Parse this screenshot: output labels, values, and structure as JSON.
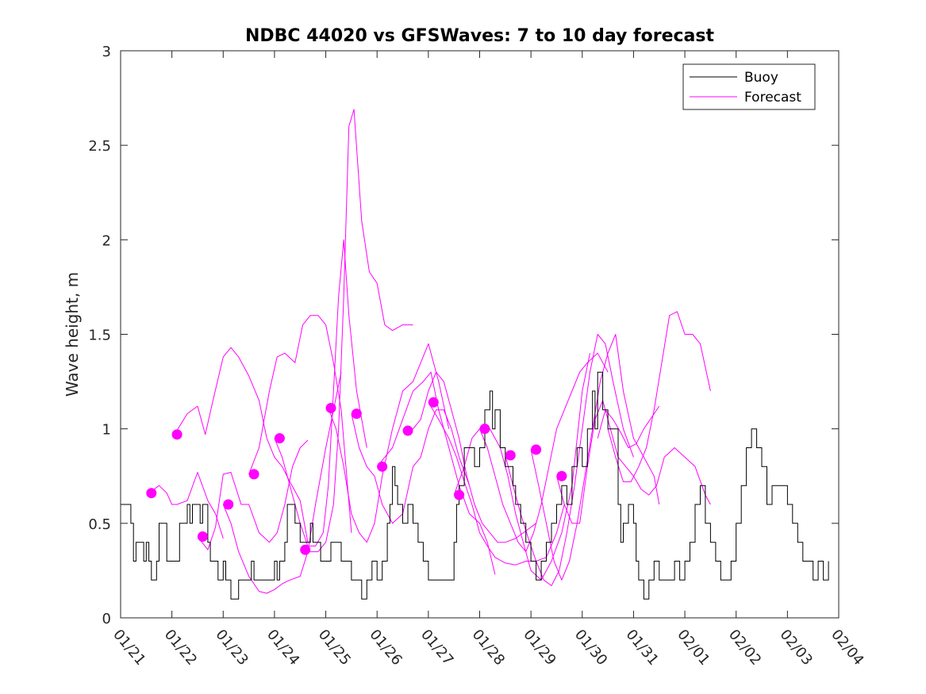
{
  "chart_data": {
    "type": "line",
    "title": "NDBC 44020 vs GFSWaves: 7 to 10 day forecast",
    "xlabel": "",
    "ylabel": "Wave height, m",
    "xlim": [
      0,
      14
    ],
    "ylim": [
      0,
      3
    ],
    "yticks": [
      0,
      0.5,
      1,
      1.5,
      2,
      2.5,
      3
    ],
    "ytick_labels": [
      "0",
      "0.5",
      "1",
      "1.5",
      "2",
      "2.5",
      "3"
    ],
    "xticks": [
      0,
      1,
      2,
      3,
      4,
      5,
      6,
      7,
      8,
      9,
      10,
      11,
      12,
      13,
      14
    ],
    "xtick_labels": [
      "01/21",
      "01/22",
      "01/23",
      "01/24",
      "01/25",
      "01/26",
      "01/27",
      "01/28",
      "01/29",
      "01/30",
      "01/31",
      "02/01",
      "02/02",
      "02/03",
      "02/04"
    ],
    "legend": {
      "position": "top-right",
      "entries": [
        {
          "label": "Buoy",
          "color": "#000000"
        },
        {
          "label": "Forecast",
          "color": "#ff00ff"
        }
      ]
    },
    "colors": {
      "buoy": "#000000",
      "forecast": "#ff00ff"
    },
    "buoy": {
      "name": "Buoy",
      "x": [
        0,
        0.1,
        0.2,
        0.25,
        0.3,
        0.4,
        0.45,
        0.5,
        0.55,
        0.6,
        0.65,
        0.7,
        0.75,
        0.8,
        0.9,
        1.0,
        1.1,
        1.15,
        1.25,
        1.3,
        1.35,
        1.4,
        1.5,
        1.55,
        1.6,
        1.65,
        1.7,
        1.75,
        1.85,
        1.9,
        2.0,
        2.05,
        2.1,
        2.15,
        2.2,
        2.3,
        2.4,
        2.5,
        2.55,
        2.6,
        2.8,
        2.9,
        3.0,
        3.05,
        3.1,
        3.2,
        3.25,
        3.3,
        3.4,
        3.5,
        3.6,
        3.7,
        3.75,
        3.8,
        3.9,
        4.0,
        4.1,
        4.2,
        4.3,
        4.5,
        4.6,
        4.7,
        4.8,
        4.9,
        5.0,
        5.1,
        5.2,
        5.25,
        5.3,
        5.35,
        5.4,
        5.5,
        5.6,
        5.7,
        5.8,
        5.9,
        6.0,
        6.05,
        6.1,
        6.2,
        6.3,
        6.4,
        6.5,
        6.55,
        6.6,
        6.7,
        6.8,
        6.9,
        7.0,
        7.1,
        7.2,
        7.25,
        7.3,
        7.4,
        7.5,
        7.6,
        7.65,
        7.7,
        7.8,
        7.9,
        8.0,
        8.1,
        8.2,
        8.3,
        8.4,
        8.5,
        8.6,
        8.7,
        8.8,
        8.9,
        9.0,
        9.1,
        9.2,
        9.25,
        9.3,
        9.4,
        9.5,
        9.6,
        9.7,
        9.75,
        9.8,
        9.9,
        10.0,
        10.05,
        10.1,
        10.2,
        10.3,
        10.4,
        10.5,
        10.6,
        10.7,
        10.8,
        10.9,
        11.0,
        11.1,
        11.2,
        11.3,
        11.4,
        11.5,
        11.6,
        11.7,
        11.8,
        11.9,
        12.0,
        12.1,
        12.2,
        12.3,
        12.4,
        12.5,
        12.6,
        12.7,
        12.8,
        12.9,
        13.0,
        13.1,
        13.2,
        13.3,
        13.4,
        13.5,
        13.6,
        13.7,
        13.8
      ],
      "y": [
        0.6,
        0.6,
        0.5,
        0.3,
        0.4,
        0.4,
        0.3,
        0.4,
        0.3,
        0.2,
        0.2,
        0.3,
        0.5,
        0.5,
        0.3,
        0.3,
        0.3,
        0.5,
        0.5,
        0.6,
        0.5,
        0.6,
        0.6,
        0.5,
        0.6,
        0.6,
        0.4,
        0.3,
        0.3,
        0.2,
        0.3,
        0.2,
        0.2,
        0.1,
        0.1,
        0.2,
        0.2,
        0.2,
        0.3,
        0.2,
        0.2,
        0.2,
        0.3,
        0.2,
        0.3,
        0.4,
        0.6,
        0.6,
        0.5,
        0.4,
        0.4,
        0.5,
        0.4,
        0.4,
        0.3,
        0.3,
        0.4,
        0.4,
        0.3,
        0.2,
        0.2,
        0.1,
        0.2,
        0.3,
        0.2,
        0.3,
        0.5,
        0.6,
        0.8,
        0.7,
        0.6,
        0.5,
        0.6,
        0.5,
        0.4,
        0.3,
        0.2,
        0.2,
        0.2,
        0.2,
        0.2,
        0.2,
        0.4,
        0.6,
        0.7,
        0.9,
        0.9,
        0.8,
        0.9,
        1.1,
        1.2,
        1.0,
        1.1,
        0.9,
        0.8,
        0.8,
        0.7,
        0.6,
        0.5,
        0.4,
        0.3,
        0.2,
        0.3,
        0.4,
        0.5,
        0.6,
        0.7,
        0.6,
        0.8,
        0.9,
        0.8,
        1.0,
        1.2,
        1.0,
        1.3,
        1.1,
        1.0,
        1.0,
        0.6,
        0.4,
        0.5,
        0.6,
        0.5,
        0.3,
        0.2,
        0.1,
        0.2,
        0.3,
        0.2,
        0.2,
        0.2,
        0.3,
        0.2,
        0.3,
        0.4,
        0.6,
        0.7,
        0.5,
        0.4,
        0.3,
        0.2,
        0.2,
        0.3,
        0.5,
        0.7,
        0.9,
        1.0,
        0.9,
        0.8,
        0.6,
        0.7,
        0.7,
        0.7,
        0.6,
        0.5,
        0.4,
        0.3,
        0.3,
        0.2,
        0.3,
        0.2,
        0.3
      ]
    },
    "forecast_series": [
      {
        "name": "Forecast 1",
        "x": [
          0.55,
          0.75,
          0.9,
          1.0,
          1.1,
          1.3,
          1.5,
          1.7,
          1.85,
          2.0
        ],
        "y": [
          0.66,
          0.7,
          0.66,
          0.6,
          0.6,
          0.62,
          0.77,
          0.62,
          0.55,
          0.42
        ]
      },
      {
        "name": "Forecast 2",
        "x": [
          1.05,
          1.3,
          1.5,
          1.65,
          1.8,
          2.0,
          2.15,
          2.3,
          2.5,
          2.7,
          2.85,
          3.0,
          3.15,
          3.3,
          3.5,
          3.65
        ],
        "y": [
          0.97,
          1.08,
          1.12,
          0.97,
          1.15,
          1.38,
          1.43,
          1.38,
          1.28,
          1.15,
          0.95,
          0.85,
          0.8,
          0.72,
          0.62,
          0.4
        ]
      },
      {
        "name": "Forecast 3",
        "x": [
          1.5,
          1.7,
          1.85,
          2.0,
          2.15,
          2.35,
          2.5,
          2.7,
          2.9,
          3.05,
          3.2,
          3.35,
          3.5,
          3.65
        ],
        "y": [
          0.43,
          0.36,
          0.48,
          0.76,
          0.77,
          0.6,
          0.6,
          0.45,
          0.4,
          0.45,
          0.6,
          0.8,
          0.9,
          0.94
        ]
      },
      {
        "name": "Forecast 4",
        "x": [
          2.0,
          2.15,
          2.3,
          2.5,
          2.7,
          2.85,
          3.0,
          3.15,
          3.3,
          3.5,
          3.65,
          3.8,
          4.0,
          4.15,
          4.3
        ],
        "y": [
          0.6,
          0.5,
          0.35,
          0.22,
          0.14,
          0.13,
          0.15,
          0.18,
          0.2,
          0.22,
          0.35,
          0.6,
          0.9,
          1.1,
          1.3
        ]
      },
      {
        "name": "Forecast 5",
        "x": [
          2.5,
          2.7,
          2.9,
          3.05,
          3.2,
          3.4,
          3.55,
          3.7,
          3.85,
          4.0,
          4.15,
          4.3,
          4.5
        ],
        "y": [
          0.76,
          0.9,
          1.2,
          1.38,
          1.4,
          1.35,
          1.55,
          1.6,
          1.6,
          1.55,
          1.35,
          1.1,
          0.45
        ]
      },
      {
        "name": "Forecast 6",
        "x": [
          3.0,
          3.15,
          3.3,
          3.5,
          3.65,
          3.8,
          3.95,
          4.05,
          4.15,
          4.25,
          4.35,
          4.45,
          4.6,
          4.8
        ],
        "y": [
          0.95,
          0.85,
          0.7,
          0.5,
          0.38,
          0.38,
          0.45,
          0.7,
          1.2,
          1.7,
          2.0,
          1.6,
          1.2,
          0.9
        ]
      },
      {
        "name": "Forecast 7",
        "x": [
          3.55,
          3.7,
          3.85,
          4.0,
          4.15,
          4.25,
          4.35,
          4.45,
          4.55,
          4.7,
          4.85,
          5.0,
          5.15,
          5.3,
          5.5,
          5.7
        ],
        "y": [
          0.36,
          0.35,
          0.35,
          0.4,
          0.6,
          1.0,
          1.7,
          2.6,
          2.69,
          2.1,
          1.83,
          1.77,
          1.55,
          1.52,
          1.55,
          1.55
        ]
      },
      {
        "name": "Forecast 8",
        "x": [
          4.05,
          4.2,
          4.35,
          4.5,
          4.65,
          4.8,
          4.95,
          5.1,
          5.3,
          5.5,
          5.7,
          5.85,
          6.0,
          6.2,
          6.4
        ],
        "y": [
          1.11,
          1.0,
          0.8,
          0.55,
          0.45,
          0.4,
          0.5,
          0.75,
          1.0,
          1.2,
          1.25,
          1.35,
          1.45,
          1.25,
          1.0
        ]
      },
      {
        "name": "Forecast 9",
        "x": [
          4.5,
          4.65,
          4.8,
          4.95,
          5.1,
          5.3,
          5.5,
          5.7,
          5.85,
          6.0,
          6.15,
          6.3,
          6.45,
          6.6,
          6.8
        ],
        "y": [
          1.08,
          0.9,
          0.8,
          0.75,
          0.6,
          0.5,
          0.55,
          0.8,
          0.85,
          1.0,
          1.1,
          1.1,
          1.0,
          0.85,
          0.7
        ]
      },
      {
        "name": "Forecast 10",
        "x": [
          5.0,
          5.15,
          5.3,
          5.5,
          5.7,
          5.9,
          6.05,
          6.2,
          6.4,
          6.6,
          6.8,
          7.0,
          7.15,
          7.3
        ],
        "y": [
          0.8,
          0.85,
          0.9,
          1.05,
          1.2,
          1.25,
          1.3,
          1.1,
          0.9,
          0.7,
          0.55,
          0.5,
          0.4,
          0.23
        ]
      },
      {
        "name": "Forecast 11",
        "x": [
          5.55,
          5.7,
          5.85,
          6.0,
          6.15,
          6.3,
          6.45,
          6.6,
          6.75,
          6.9,
          7.05,
          7.2,
          7.35,
          7.5,
          7.7,
          7.9,
          8.1
        ],
        "y": [
          0.99,
          1.0,
          1.05,
          1.2,
          1.3,
          1.25,
          1.1,
          0.95,
          0.75,
          0.6,
          0.5,
          0.45,
          0.4,
          0.4,
          0.42,
          0.46,
          0.5
        ]
      },
      {
        "name": "Forecast 12",
        "x": [
          6.0,
          6.2,
          6.4,
          6.55,
          6.7,
          6.85,
          7.0,
          7.15,
          7.3,
          7.5,
          7.7,
          7.9,
          8.1,
          8.3,
          8.5,
          8.65
        ],
        "y": [
          1.14,
          1.05,
          0.95,
          0.85,
          0.72,
          0.6,
          0.45,
          0.38,
          0.32,
          0.29,
          0.28,
          0.3,
          0.3,
          0.32,
          0.45,
          0.6
        ]
      },
      {
        "name": "Forecast 13",
        "x": [
          6.5,
          6.7,
          6.85,
          7.0,
          7.2,
          7.4,
          7.55,
          7.7,
          7.85,
          8.0,
          8.2,
          8.4,
          8.6,
          8.8,
          9.0,
          9.15
        ],
        "y": [
          0.65,
          0.8,
          0.95,
          1.0,
          1.0,
          0.9,
          0.75,
          0.55,
          0.4,
          0.25,
          0.2,
          0.3,
          0.45,
          0.7,
          1.2,
          1.4
        ]
      },
      {
        "name": "Forecast 14",
        "x": [
          7.0,
          7.15,
          7.3,
          7.45,
          7.6,
          7.75,
          7.9,
          8.05,
          8.2,
          8.35,
          8.5,
          8.65,
          8.8,
          8.95,
          9.1,
          9.3,
          9.5
        ],
        "y": [
          1.0,
          0.9,
          0.75,
          0.6,
          0.5,
          0.4,
          0.35,
          0.45,
          0.6,
          0.8,
          1.0,
          1.1,
          1.2,
          1.3,
          1.35,
          1.4,
          1.3
        ]
      },
      {
        "name": "Forecast 15",
        "x": [
          7.5,
          7.65,
          7.8,
          7.95,
          8.1,
          8.25,
          8.4,
          8.55,
          8.7,
          8.85,
          9.0,
          9.15,
          9.3,
          9.45,
          9.6,
          9.8,
          10.0
        ],
        "y": [
          0.86,
          0.7,
          0.55,
          0.42,
          0.3,
          0.2,
          0.17,
          0.25,
          0.45,
          0.7,
          1.0,
          1.3,
          1.5,
          1.45,
          1.25,
          1.0,
          0.85
        ]
      },
      {
        "name": "Forecast 16",
        "x": [
          8.0,
          8.15,
          8.3,
          8.45,
          8.6,
          8.75,
          8.9,
          9.05,
          9.2,
          9.35,
          9.5,
          9.65,
          9.8,
          10.0,
          10.2,
          10.4,
          10.5
        ],
        "y": [
          0.89,
          0.7,
          0.5,
          0.3,
          0.2,
          0.3,
          0.5,
          0.75,
          1.0,
          1.25,
          1.4,
          1.5,
          1.2,
          0.95,
          0.85,
          0.75,
          0.6
        ]
      },
      {
        "name": "Forecast 17",
        "x": [
          8.5,
          8.65,
          8.8,
          8.95,
          9.1,
          9.25,
          9.4,
          9.55,
          9.7,
          9.85,
          10.0,
          10.15,
          10.3,
          10.45,
          10.6,
          10.8,
          11.0,
          11.2,
          11.4,
          11.5
        ],
        "y": [
          0.75,
          0.6,
          0.5,
          0.5,
          0.8,
          1.05,
          1.15,
          1.0,
          0.85,
          0.8,
          0.75,
          0.68,
          0.65,
          0.7,
          0.85,
          0.9,
          0.85,
          0.8,
          0.65,
          0.6
        ]
      },
      {
        "name": "Forecast 18",
        "x": [
          9.5,
          9.65,
          9.8,
          9.95,
          10.1,
          10.25,
          10.4,
          10.55,
          10.7,
          10.85,
          11.0,
          11.15,
          11.3,
          11.5
        ],
        "y": [
          1.0,
          0.85,
          0.72,
          0.72,
          0.8,
          0.9,
          1.1,
          1.35,
          1.6,
          1.62,
          1.5,
          1.5,
          1.45,
          1.2
        ]
      },
      {
        "name": "Forecast 19",
        "x": [
          9.3,
          9.45,
          9.6,
          9.75,
          9.9,
          10.05,
          10.2,
          10.4,
          10.5
        ],
        "y": [
          0.95,
          1.1,
          1.05,
          0.98,
          0.9,
          0.92,
          1.0,
          1.08,
          1.12
        ]
      }
    ],
    "forecast_markers": {
      "name": "Forecast start",
      "x": [
        0.6,
        1.1,
        1.6,
        2.1,
        2.6,
        3.1,
        3.6,
        4.1,
        4.6,
        5.1,
        5.6,
        6.1,
        6.6,
        7.1,
        7.6,
        8.1,
        8.6
      ],
      "y": [
        0.66,
        0.97,
        0.43,
        0.6,
        0.76,
        0.95,
        0.36,
        1.11,
        1.08,
        0.8,
        0.99,
        1.14,
        0.65,
        1.0,
        0.86,
        0.89,
        0.75
      ]
    }
  }
}
